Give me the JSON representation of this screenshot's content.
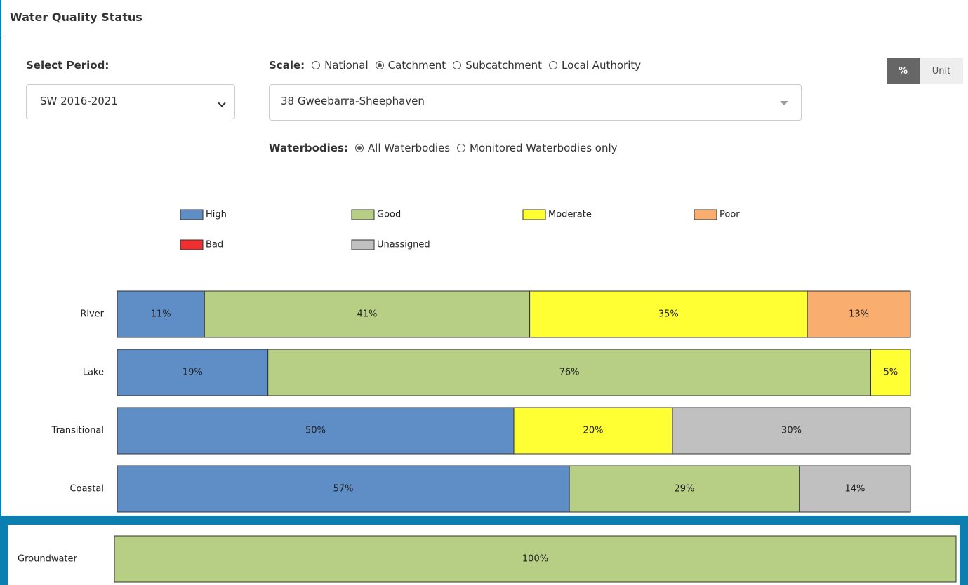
{
  "header": {
    "title": "Water Quality Status"
  },
  "period": {
    "label": "Select Period:",
    "selected": "SW 2016-2021"
  },
  "scale": {
    "label": "Scale:",
    "options": [
      {
        "label": "National",
        "checked": false
      },
      {
        "label": "Catchment",
        "checked": true
      },
      {
        "label": "Subcatchment",
        "checked": false
      },
      {
        "label": "Local Authority",
        "checked": false
      }
    ],
    "selected": "38 Gweebarra-Sheephaven"
  },
  "waterbodies": {
    "label": "Waterbodies:",
    "options": [
      {
        "label": "All Waterbodies",
        "checked": true
      },
      {
        "label": "Monitored Waterbodies only",
        "checked": false
      }
    ]
  },
  "toggle": [
    {
      "label": "%",
      "active": true
    },
    {
      "label": "Unit",
      "active": false
    }
  ],
  "chart_data": [
    {
      "type": "stacked-bar",
      "orientation": "horizontal",
      "xlim": [
        0,
        100
      ],
      "categories": [
        "River",
        "Lake",
        "Transitional",
        "Coastal"
      ],
      "series": [
        {
          "name": "High",
          "color": "#5f8dc6",
          "values": [
            11,
            19,
            50,
            57
          ],
          "value_labels": [
            "11%",
            "19%",
            "50%",
            "57%"
          ]
        },
        {
          "name": "Good",
          "color": "#b7cf85",
          "values": [
            41,
            76,
            null,
            29
          ],
          "value_labels": [
            "41%",
            "76%",
            null,
            "29%"
          ]
        },
        {
          "name": "Moderate",
          "color": "#ffff33",
          "values": [
            35,
            5,
            20,
            null
          ],
          "value_labels": [
            "35%",
            "5%",
            "20%",
            null
          ]
        },
        {
          "name": "Poor",
          "color": "#f9ad6e",
          "values": [
            13,
            null,
            null,
            null
          ],
          "value_labels": [
            "13%",
            null,
            null,
            null
          ]
        },
        {
          "name": "Bad",
          "color": "#ee3030",
          "values": [
            null,
            null,
            null,
            null
          ],
          "value_labels": [
            null,
            null,
            null,
            null
          ]
        },
        {
          "name": "Unassigned",
          "color": "#c0c0c0",
          "values": [
            null,
            null,
            30,
            14
          ],
          "value_labels": [
            null,
            null,
            "30%",
            "14%"
          ]
        }
      ]
    },
    {
      "type": "bar",
      "orientation": "horizontal",
      "xlim": [
        0,
        100
      ],
      "categories": [
        "Groundwater"
      ],
      "values": [
        100
      ],
      "value_labels": [
        "100%"
      ],
      "color": "#b7cf85"
    }
  ]
}
